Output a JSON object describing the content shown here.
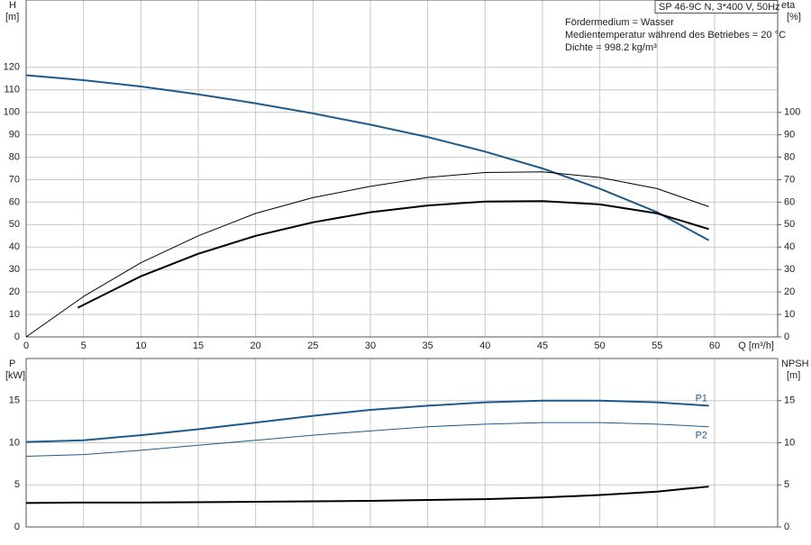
{
  "chart_data": [
    {
      "type": "line",
      "title": "SP 46-9C N, 3*400 V, 50Hz",
      "annotations": [
        "Fördermedium = Wasser",
        "Medientemperatur während des Betriebes = 20 °C",
        "Dichte = 998.2 kg/m³"
      ],
      "xlabel": "Q [m³/h]",
      "ylabel": "H",
      "yunit": "[m]",
      "y2label": "eta",
      "y2unit": "[%]",
      "xlim": [
        0,
        65.5
      ],
      "xticks": [
        0,
        5,
        10,
        15,
        20,
        25,
        30,
        35,
        40,
        45,
        50,
        55,
        60
      ],
      "ylim": [
        0,
        150
      ],
      "yticks": [
        0,
        10,
        20,
        30,
        40,
        50,
        60,
        70,
        80,
        90,
        100,
        110,
        120
      ],
      "y2lim": [
        0,
        150
      ],
      "y2ticks": [
        0,
        10,
        20,
        30,
        40,
        50,
        60,
        70,
        80,
        90,
        100
      ],
      "grid": true,
      "series": [
        {
          "color": "#1f5a8a",
          "width": 2,
          "axis": "y",
          "x": [
            0,
            5,
            10,
            15,
            20,
            25,
            30,
            35,
            40,
            45,
            50,
            55,
            59.5
          ],
          "values": [
            116.5,
            114.3,
            111.5,
            108,
            104,
            99.5,
            94.5,
            89,
            82.5,
            75,
            66,
            55.5,
            43
          ]
        },
        {
          "color": "#000000",
          "width": 1,
          "axis": "y2",
          "x": [
            0,
            5,
            10,
            15,
            20,
            25,
            30,
            35,
            40,
            45,
            50,
            55,
            59.5
          ],
          "values": [
            0,
            18,
            33,
            45,
            55,
            62,
            67,
            71,
            73.2,
            73.5,
            71,
            66,
            58
          ]
        },
        {
          "color": "#000000",
          "width": 2,
          "axis": "y2",
          "x": [
            4.5,
            10,
            15,
            20,
            25,
            30,
            35,
            40,
            45,
            50,
            55,
            59.5
          ],
          "values": [
            13,
            27,
            37,
            45,
            51,
            55.5,
            58.5,
            60.3,
            60.5,
            59,
            55,
            48
          ]
        }
      ]
    },
    {
      "type": "line",
      "ylabel": "P",
      "yunit": "[kW]",
      "y2label": "NPSH",
      "y2unit": "[m]",
      "xlim": [
        0,
        65.5
      ],
      "ylim": [
        0,
        20
      ],
      "yticks": [
        0,
        5,
        10,
        15
      ],
      "y2lim": [
        0,
        20
      ],
      "y2ticks": [
        0,
        5,
        10,
        15
      ],
      "grid": true,
      "series": [
        {
          "name": "P1",
          "color": "#1f5a8a",
          "width": 2,
          "axis": "y",
          "x": [
            0,
            5,
            10,
            15,
            20,
            25,
            30,
            35,
            40,
            45,
            50,
            55,
            59.5
          ],
          "values": [
            10.1,
            10.3,
            10.9,
            11.6,
            12.4,
            13.2,
            13.9,
            14.4,
            14.8,
            15,
            15,
            14.8,
            14.4
          ]
        },
        {
          "name": "P2",
          "color": "#1f5a8a",
          "width": 1,
          "axis": "y",
          "x": [
            0,
            5,
            10,
            15,
            20,
            25,
            30,
            35,
            40,
            45,
            50,
            55,
            59.5
          ],
          "values": [
            8.4,
            8.6,
            9.1,
            9.7,
            10.3,
            10.9,
            11.4,
            11.9,
            12.2,
            12.4,
            12.4,
            12.2,
            11.9
          ]
        },
        {
          "color": "#000000",
          "width": 2,
          "axis": "y2",
          "x": [
            0,
            4.3,
            10,
            20,
            30,
            40,
            45,
            50,
            55,
            59.5
          ],
          "values": [
            2.85,
            2.9,
            2.9,
            3,
            3.1,
            3.3,
            3.5,
            3.8,
            4.2,
            4.8
          ]
        }
      ]
    }
  ]
}
